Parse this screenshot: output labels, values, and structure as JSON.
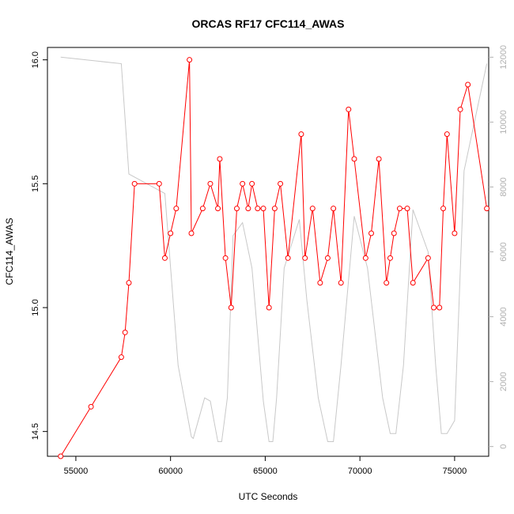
{
  "chart_data": {
    "type": "line",
    "title": "ORCAS RF17 CFC114_AWAS",
    "xlabel": "UTC Seconds",
    "ylabel": "CFC114_AWAS",
    "xlim": [
      53500,
      76800
    ],
    "ylim": [
      14.4,
      16.05
    ],
    "y2lim": [
      -300,
      12300
    ],
    "grid": false,
    "x_ticks": [
      55000,
      60000,
      65000,
      70000,
      75000
    ],
    "x_tick_labels": [
      "55000",
      "60000",
      "65000",
      "70000",
      "75000"
    ],
    "y_ticks": [
      14.5,
      15.0,
      15.5,
      16.0
    ],
    "y_tick_labels": [
      "14.5",
      "15.0",
      "15.5",
      "16.0"
    ],
    "y2_ticks": [
      0,
      2000,
      4000,
      6000,
      8000,
      10000,
      12000
    ],
    "y2_tick_labels": [
      "0",
      "2000",
      "4000",
      "6000",
      "8000",
      "10000",
      "12000"
    ],
    "series": [
      {
        "role": "CFC114_AWAS",
        "axis": "left",
        "color": "#ff0000",
        "marker": "open-circle",
        "x": [
          54200,
          55800,
          57400,
          57600,
          57800,
          58100,
          59400,
          59700,
          60000,
          60300,
          61000,
          61100,
          61700,
          62100,
          62500,
          62600,
          62900,
          63200,
          63500,
          63800,
          64100,
          64300,
          64600,
          64900,
          65200,
          65500,
          65800,
          66200,
          66900,
          67100,
          67500,
          67900,
          68300,
          68600,
          69000,
          69400,
          69700,
          70300,
          70600,
          71000,
          71400,
          71600,
          71800,
          72100,
          72500,
          72800,
          73600,
          73900,
          74200,
          74400,
          74600,
          75000,
          75300,
          75700,
          76700
        ],
        "y": [
          14.4,
          14.6,
          14.8,
          14.9,
          15.1,
          15.5,
          15.5,
          15.2,
          15.3,
          15.4,
          16.0,
          15.3,
          15.4,
          15.5,
          15.4,
          15.6,
          15.2,
          15.0,
          15.4,
          15.5,
          15.4,
          15.5,
          15.4,
          15.4,
          15.0,
          15.4,
          15.5,
          15.2,
          15.7,
          15.2,
          15.4,
          15.1,
          15.2,
          15.4,
          15.1,
          15.8,
          15.6,
          15.2,
          15.3,
          15.6,
          15.1,
          15.2,
          15.3,
          15.4,
          15.4,
          15.1,
          15.2,
          15.0,
          15.0,
          15.4,
          15.7,
          15.3,
          15.8,
          15.9,
          15.4
        ]
      },
      {
        "role": "altitude",
        "axis": "right",
        "color": "#c8c8c8",
        "marker": "none",
        "x": [
          54200,
          55800,
          57400,
          57800,
          59700,
          60400,
          61100,
          61200,
          61800,
          62100,
          62500,
          62700,
          63000,
          63300,
          63800,
          64300,
          64900,
          65200,
          65400,
          65600,
          66000,
          66800,
          67200,
          67800,
          68300,
          68600,
          69000,
          69700,
          70400,
          71200,
          71600,
          71900,
          72300,
          72800,
          73600,
          74000,
          74300,
          74600,
          75000,
          75500,
          76700
        ],
        "y": [
          12000,
          11900,
          11800,
          8400,
          7800,
          2500,
          300,
          250,
          1500,
          1400,
          150,
          150,
          1500,
          6500,
          6900,
          5500,
          1400,
          150,
          150,
          1500,
          5500,
          7000,
          4500,
          1500,
          150,
          150,
          2500,
          7100,
          5500,
          1500,
          400,
          400,
          2500,
          7300,
          6000,
          2500,
          400,
          400,
          800,
          8500,
          11800
        ]
      }
    ]
  }
}
